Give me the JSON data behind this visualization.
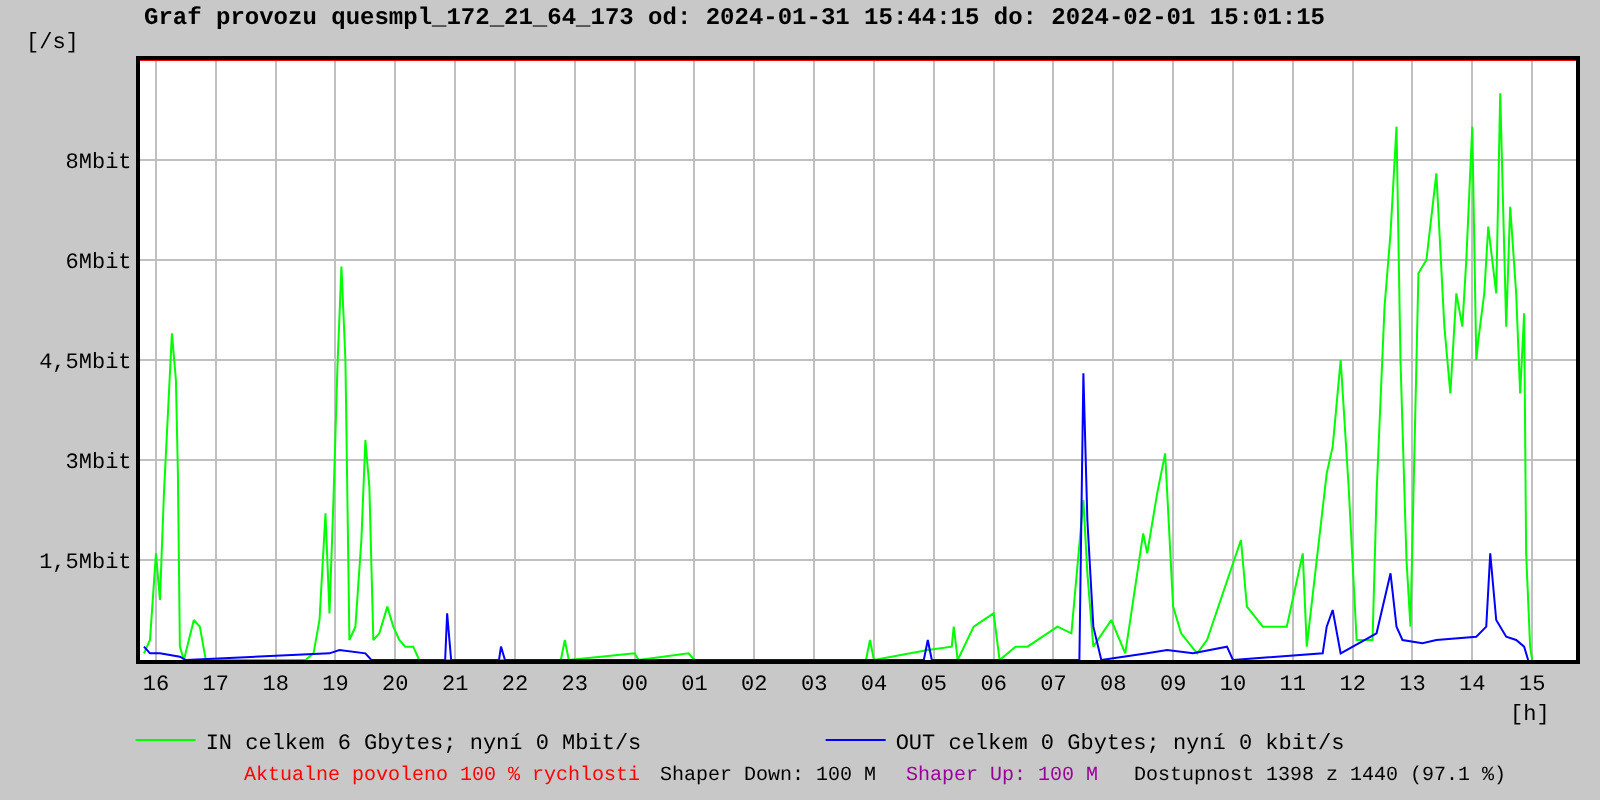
{
  "chart_data": {
    "type": "line",
    "title": "Graf provozu quesmpl_172_21_64_173 od: 2024-01-31 15:44:15 do: 2024-02-01 15:01:15",
    "ylabel": "[/s]",
    "xlabel": "[h]",
    "xlim": [
      "2024-01-31T15:44",
      "2024-02-01T15:44"
    ],
    "ylim": [
      0,
      9
    ],
    "xticks": [
      {
        "value": "2024-01-31T16:00",
        "label": "16"
      },
      {
        "value": "2024-01-31T17:00",
        "label": "17"
      },
      {
        "value": "2024-01-31T18:00",
        "label": "18"
      },
      {
        "value": "2024-01-31T19:00",
        "label": "19"
      },
      {
        "value": "2024-01-31T20:00",
        "label": "20"
      },
      {
        "value": "2024-01-31T21:00",
        "label": "21"
      },
      {
        "value": "2024-01-31T22:00",
        "label": "22"
      },
      {
        "value": "2024-01-31T23:00",
        "label": "23"
      },
      {
        "value": "2024-02-01T00:00",
        "label": "00"
      },
      {
        "value": "2024-02-01T01:00",
        "label": "01"
      },
      {
        "value": "2024-02-01T02:00",
        "label": "02"
      },
      {
        "value": "2024-02-01T03:00",
        "label": "03"
      },
      {
        "value": "2024-02-01T04:00",
        "label": "04"
      },
      {
        "value": "2024-02-01T05:00",
        "label": "05"
      },
      {
        "value": "2024-02-01T06:00",
        "label": "06"
      },
      {
        "value": "2024-02-01T07:00",
        "label": "07"
      },
      {
        "value": "2024-02-01T08:00",
        "label": "08"
      },
      {
        "value": "2024-02-01T09:00",
        "label": "09"
      },
      {
        "value": "2024-02-01T10:00",
        "label": "10"
      },
      {
        "value": "2024-02-01T11:00",
        "label": "11"
      },
      {
        "value": "2024-02-01T12:00",
        "label": "12"
      },
      {
        "value": "2024-02-01T13:00",
        "label": "13"
      },
      {
        "value": "2024-02-01T14:00",
        "label": "14"
      },
      {
        "value": "2024-02-01T15:00",
        "label": "15"
      }
    ],
    "yticks": [
      {
        "value": 1.5,
        "label": "1,5Mbit"
      },
      {
        "value": 3,
        "label": "3Mbit"
      },
      {
        "value": 4.5,
        "label": "4,5Mbit"
      },
      {
        "value": 6,
        "label": "6Mbit"
      },
      {
        "value": 7.5,
        "label": "8Mbit"
      }
    ],
    "grid": true,
    "legend": "bottom",
    "marker": "none",
    "line_style": "solid",
    "ref_lines": [
      {
        "axis": "y",
        "value": 9,
        "label": null,
        "color": "#ff0000"
      }
    ],
    "annotations": [
      "Aktualne povoleno 100 % rychlosti",
      "Shaper Down: 100 M",
      "Shaper Up: 100 M",
      "Dostupnost 1398 z 1440 (97.1 %)"
    ],
    "series": [
      {
        "name": "IN celkem 6 Gbytes; nyní 0 Mbit/s",
        "color": "#00ff00",
        "x": [
          "2024-01-31T15:48",
          "2024-01-31T15:54",
          "2024-01-31T16:00",
          "2024-01-31T16:04",
          "2024-01-31T16:08",
          "2024-01-31T16:12",
          "2024-01-31T16:16",
          "2024-01-31T16:20",
          "2024-01-31T16:22",
          "2024-01-31T16:24",
          "2024-01-31T16:28",
          "2024-01-31T16:38",
          "2024-01-31T16:44",
          "2024-01-31T16:50",
          "2024-01-31T18:30",
          "2024-01-31T18:38",
          "2024-01-31T18:44",
          "2024-01-31T18:50",
          "2024-01-31T18:54",
          "2024-01-31T18:58",
          "2024-01-31T19:02",
          "2024-01-31T19:06",
          "2024-01-31T19:10",
          "2024-01-31T19:14",
          "2024-01-31T19:20",
          "2024-01-31T19:26",
          "2024-01-31T19:30",
          "2024-01-31T19:34",
          "2024-01-31T19:38",
          "2024-01-31T19:44",
          "2024-01-31T19:52",
          "2024-01-31T19:58",
          "2024-01-31T20:04",
          "2024-01-31T20:10",
          "2024-01-31T20:18",
          "2024-01-31T20:24",
          "2024-01-31T22:46",
          "2024-01-31T22:50",
          "2024-01-31T22:54",
          "2024-02-01T00:00",
          "2024-02-01T00:04",
          "2024-02-01T00:54",
          "2024-02-01T01:00",
          "2024-02-01T03:52",
          "2024-02-01T03:56",
          "2024-02-01T04:00",
          "2024-02-01T04:54",
          "2024-02-01T05:18",
          "2024-02-01T05:20",
          "2024-02-01T05:24",
          "2024-02-01T05:40",
          "2024-02-01T06:00",
          "2024-02-01T06:06",
          "2024-02-01T06:22",
          "2024-02-01T06:34",
          "2024-02-01T07:04",
          "2024-02-01T07:18",
          "2024-02-01T07:30",
          "2024-02-01T07:34",
          "2024-02-01T07:40",
          "2024-02-01T07:58",
          "2024-02-01T08:12",
          "2024-02-01T08:30",
          "2024-02-01T08:34",
          "2024-02-01T08:44",
          "2024-02-01T08:52",
          "2024-02-01T09:00",
          "2024-02-01T09:08",
          "2024-02-01T09:24",
          "2024-02-01T09:34",
          "2024-02-01T10:08",
          "2024-02-01T10:14",
          "2024-02-01T10:30",
          "2024-02-01T10:54",
          "2024-02-01T11:10",
          "2024-02-01T11:14",
          "2024-02-01T11:34",
          "2024-02-01T11:40",
          "2024-02-01T11:48",
          "2024-02-01T11:56",
          "2024-02-01T12:04",
          "2024-02-01T12:20",
          "2024-02-01T12:24",
          "2024-02-01T12:32",
          "2024-02-01T12:38",
          "2024-02-01T12:44",
          "2024-02-01T12:48",
          "2024-02-01T12:54",
          "2024-02-01T12:58",
          "2024-02-01T13:06",
          "2024-02-01T13:14",
          "2024-02-01T13:24",
          "2024-02-01T13:32",
          "2024-02-01T13:38",
          "2024-02-01T13:44",
          "2024-02-01T13:50",
          "2024-02-01T13:54",
          "2024-02-01T14:00",
          "2024-02-01T14:04",
          "2024-02-01T14:06",
          "2024-02-01T14:12",
          "2024-02-01T14:16",
          "2024-02-01T14:24",
          "2024-02-01T14:28",
          "2024-02-01T14:34",
          "2024-02-01T14:38",
          "2024-02-01T14:44",
          "2024-02-01T14:48",
          "2024-02-01T14:52",
          "2024-02-01T14:54",
          "2024-02-01T14:58",
          "2024-02-01T15:00"
        ],
        "values": [
          0.1,
          0.3,
          1.6,
          0.9,
          2.5,
          3.7,
          4.9,
          4.2,
          2.8,
          0.2,
          0,
          0.6,
          0.5,
          0,
          0,
          0.1,
          0.6,
          2.2,
          0.7,
          2.4,
          4.4,
          5.9,
          4.5,
          0.3,
          0.5,
          1.8,
          3.3,
          2.6,
          0.3,
          0.4,
          0.8,
          0.5,
          0.3,
          0.2,
          0.2,
          0,
          0,
          0.3,
          0,
          0.1,
          0,
          0.1,
          0,
          0,
          0.3,
          0,
          0.15,
          0.2,
          0.5,
          0,
          0.5,
          0.7,
          0,
          0.2,
          0.2,
          0.5,
          0.4,
          2.4,
          1.3,
          0.2,
          0.6,
          0.1,
          1.9,
          1.6,
          2.5,
          3.1,
          0.8,
          0.4,
          0.1,
          0.3,
          1.8,
          0.8,
          0.5,
          0.5,
          1.6,
          0.2,
          2.8,
          3.2,
          4.5,
          2.6,
          0.3,
          0.3,
          2.5,
          5.3,
          6.4,
          8.0,
          4.5,
          1.5,
          0.5,
          5.8,
          6.0,
          7.3,
          5.0,
          4.0,
          5.5,
          5.0,
          6.0,
          8.0,
          4.5,
          4.8,
          5.5,
          6.5,
          5.5,
          8.5,
          5.0,
          6.8,
          5.5,
          4.0,
          5.2,
          1.6,
          0.2,
          0
        ]
      },
      {
        "name": "OUT celkem 0 Gbytes; nyní 0 kbit/s",
        "color": "#0000ff",
        "x": [
          "2024-01-31T15:48",
          "2024-01-31T15:54",
          "2024-01-31T16:04",
          "2024-01-31T16:24",
          "2024-01-31T16:30",
          "2024-01-31T18:54",
          "2024-01-31T19:04",
          "2024-01-31T19:30",
          "2024-01-31T19:36",
          "2024-01-31T20:50",
          "2024-01-31T20:52",
          "2024-01-31T20:56",
          "2024-01-31T21:44",
          "2024-01-31T21:46",
          "2024-01-31T21:50",
          "2024-02-01T04:50",
          "2024-02-01T04:54",
          "2024-02-01T04:58",
          "2024-02-01T07:26",
          "2024-02-01T07:30",
          "2024-02-01T07:34",
          "2024-02-01T07:40",
          "2024-02-01T07:48",
          "2024-02-01T08:34",
          "2024-02-01T08:54",
          "2024-02-01T09:20",
          "2024-02-01T09:54",
          "2024-02-01T10:00",
          "2024-02-01T11:30",
          "2024-02-01T11:34",
          "2024-02-01T11:40",
          "2024-02-01T11:48",
          "2024-02-01T12:24",
          "2024-02-01T12:38",
          "2024-02-01T12:44",
          "2024-02-01T12:50",
          "2024-02-01T13:10",
          "2024-02-01T13:24",
          "2024-02-01T14:04",
          "2024-02-01T14:14",
          "2024-02-01T14:18",
          "2024-02-01T14:24",
          "2024-02-01T14:34",
          "2024-02-01T14:44",
          "2024-02-01T14:52",
          "2024-02-01T14:56"
        ],
        "values": [
          0.2,
          0.1,
          0.1,
          0.05,
          0,
          0.1,
          0.15,
          0.1,
          0,
          0,
          0.7,
          0,
          0,
          0.2,
          0,
          0,
          0.3,
          0,
          0,
          4.3,
          2.1,
          0.5,
          0,
          0.1,
          0.15,
          0.1,
          0.2,
          0,
          0.1,
          0.5,
          0.75,
          0.1,
          0.4,
          1.3,
          0.5,
          0.3,
          0.25,
          0.3,
          0.35,
          0.5,
          1.6,
          0.6,
          0.35,
          0.3,
          0.2,
          0
        ]
      }
    ]
  }
}
